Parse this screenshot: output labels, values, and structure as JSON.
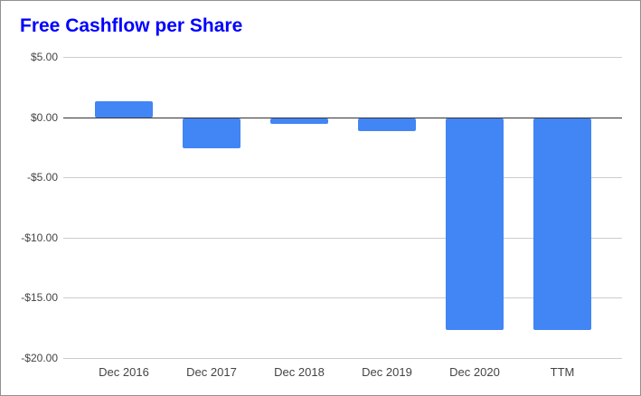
{
  "title": "Free Cashflow per Share",
  "colors": {
    "background": "#ffffff",
    "border": "#909090",
    "title": "#0000ff",
    "bar": "#4285f4",
    "gridline": "#cccccc",
    "zero_line": "#333333",
    "axis_label": "#444444"
  },
  "chart_data": {
    "type": "bar",
    "title": "Free Cashflow per Share",
    "categories": [
      "Dec 2016",
      "Dec 2017",
      "Dec 2018",
      "Dec 2019",
      "Dec 2020",
      "TTM"
    ],
    "values": [
      1.35,
      -2.5,
      -0.45,
      -1.05,
      -17.6,
      -17.6
    ],
    "series_unit": "$ per share",
    "y_ticks": [
      "$5.00",
      "$0.00",
      "-$5.00",
      "-$10.00",
      "-$15.00",
      "-$20.00"
    ],
    "y_tick_values": [
      5,
      0,
      -5,
      -10,
      -15,
      -20
    ],
    "ylim": [
      -20,
      5
    ],
    "xlabel": "",
    "ylabel": "",
    "legend": "none",
    "grid": true
  }
}
